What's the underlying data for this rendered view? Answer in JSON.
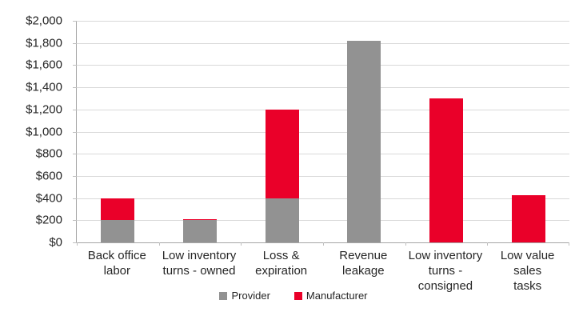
{
  "chart_data": {
    "type": "bar",
    "stacked": true,
    "title": "",
    "xlabel": "",
    "ylabel": "",
    "categories": [
      "Back office\nlabor",
      "Low inventory\nturns - owned",
      "Loss &\nexpiration",
      "Revenue\nleakage",
      "Low inventory\nturns -\nconsigned",
      "Low value sales\ntasks"
    ],
    "series": [
      {
        "name": "Provider",
        "color": "#929292",
        "values": [
          200,
          200,
          400,
          1820,
          0,
          0
        ]
      },
      {
        "name": "Manufacturer",
        "color": "#EA0029",
        "values": [
          200,
          10,
          800,
          0,
          1300,
          425
        ]
      }
    ],
    "ylim": [
      0,
      2000
    ],
    "ytick_step": 200,
    "ytick_labels": [
      "$0",
      "$200",
      "$400",
      "$600",
      "$800",
      "$1,000",
      "$1,200",
      "$1,400",
      "$1,600",
      "$1,800",
      "$2,000"
    ],
    "grid": true,
    "legend_position": "bottom",
    "colors": {
      "gridline": "#D9D9D9",
      "axis": "#A6A6A6",
      "tick": "#BFBFBF",
      "text": "#262626",
      "background": "#FFFFFF"
    }
  }
}
